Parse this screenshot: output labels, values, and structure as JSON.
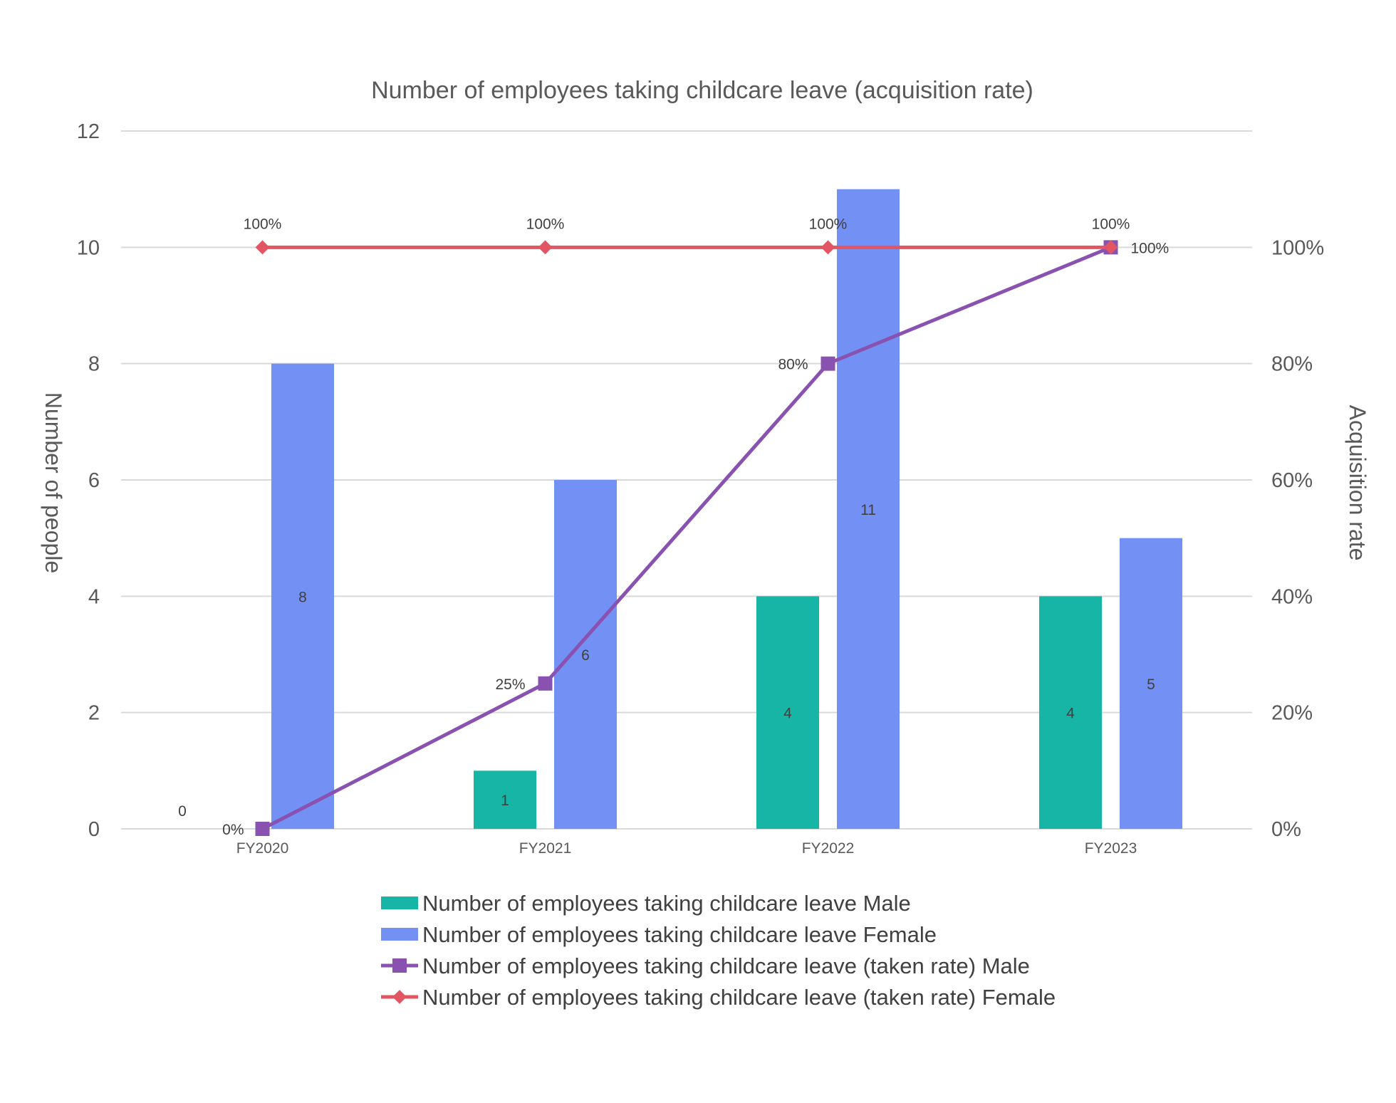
{
  "chart_data": {
    "type": "bar",
    "title": "Number of employees taking childcare leave (acquisition rate)",
    "categories": [
      "FY2020",
      "FY2021",
      "FY2022",
      "FY2023"
    ],
    "y_left": {
      "label": "Number of people",
      "min": 0,
      "max": 12,
      "ticks": [
        "0",
        "2",
        "4",
        "6",
        "8",
        "10",
        "12"
      ]
    },
    "y_right": {
      "label": "Acquisition rate",
      "min": 0,
      "max": 1.2,
      "ticks": [
        "0%",
        "20%",
        "40%",
        "60%",
        "80%",
        "100%"
      ]
    },
    "grid": true,
    "legend_position": "bottom",
    "bar_series": [
      {
        "name": "Number of employees taking childcare leave Male",
        "color": "#17b5a6",
        "values": [
          0,
          1,
          4,
          4
        ],
        "labels": [
          "0",
          "1",
          "4",
          "4"
        ]
      },
      {
        "name": "Number of employees taking childcare leave Female",
        "color": "#7390f5",
        "values": [
          8,
          6,
          11,
          5
        ],
        "labels": [
          "8",
          "6",
          "11",
          "5"
        ]
      }
    ],
    "line_series": [
      {
        "name": "Number of employees taking childcare leave (taken rate) Male",
        "color": "#8a52b0",
        "marker": "square",
        "values": [
          0,
          0.25,
          0.8,
          1.0
        ],
        "labels": [
          "0%",
          "25%",
          "80%",
          "100%"
        ]
      },
      {
        "name": "Number of employees taking childcare leave (taken rate) Female",
        "color": "#e25563",
        "marker": "diamond",
        "values": [
          1.0,
          1.0,
          1.0,
          1.0
        ],
        "labels": [
          "100%",
          "100%",
          "100%",
          "100%"
        ]
      }
    ]
  }
}
